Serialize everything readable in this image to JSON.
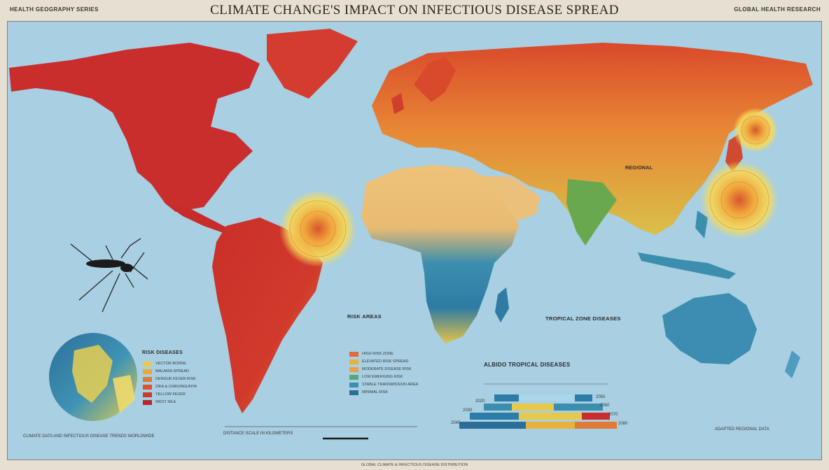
{
  "header": {
    "title": "CLIMATE CHANGE'S IMPACT ON INFECTIOUS DISEASE SPREAD",
    "top_left": "HEALTH GEOGRAPHY SERIES",
    "top_right": "GLOBAL HEALTH RESEARCH"
  },
  "labels": {
    "regional_label": "REGIONAL",
    "tropical_zone_label": "TROPICAL ZONE DISEASES",
    "risk_area_label": "RISK AREAS",
    "disease_trends_label": "ALBIDO TROPICAL DISEASES",
    "globe_legend_title": "RISK DISEASES",
    "scale_note": "DISTANCE SCALE IN KILOMETERS",
    "source_left": "CLIMATE DATA AND INFECTIOUS DISEASE TRENDS WORLDWIDE",
    "source_right": "ADAPTED REGIONAL DATA",
    "bottom_note": "GLOBAL CLIMATE & INFECTIOUS DISEASE DISTRIBUTION"
  },
  "legend_center": [
    {
      "color": "#e4693a",
      "label": "HIGH RISK ZONE"
    },
    {
      "color": "#e8b23a",
      "label": "ELEVATED RISK SPREAD"
    },
    {
      "color": "#e8a045",
      "label": "MODERATE DISEASE RISK"
    },
    {
      "color": "#58a878",
      "label": "LOW EMERGING RISK"
    },
    {
      "color": "#3a8fb0",
      "label": "STABLE TRANSMISSION AREA"
    },
    {
      "color": "#2b6f98",
      "label": "MINIMAL RISK"
    }
  ],
  "legend_globe": [
    {
      "color": "#e9c84a",
      "label": "VECTOR BORNE"
    },
    {
      "color": "#e8a83a",
      "label": "MALARIA SPREAD"
    },
    {
      "color": "#e07a35",
      "label": "DENGUE FEVER RISK"
    },
    {
      "color": "#d8552e",
      "label": "ZIKA & CHIKUNGUNYA"
    },
    {
      "color": "#c93b2d",
      "label": "YELLOW FEVER"
    },
    {
      "color": "#b8282a",
      "label": "WEST NILE"
    }
  ],
  "bar_chart": {
    "row_labels_left": [
      "2020",
      "2030",
      "2040"
    ],
    "row_labels_right": [
      "2050",
      "2060",
      "2070",
      "2080"
    ]
  },
  "colors": {
    "ocean": "#a8cfe2",
    "high_risk": "#c8302c",
    "moderate": "#e67a2e",
    "low": "#e9d36a",
    "stable": "#2d7ca8"
  },
  "icons": [
    "mosquito-icon",
    "globe-icon",
    "hotspot-icon"
  ]
}
